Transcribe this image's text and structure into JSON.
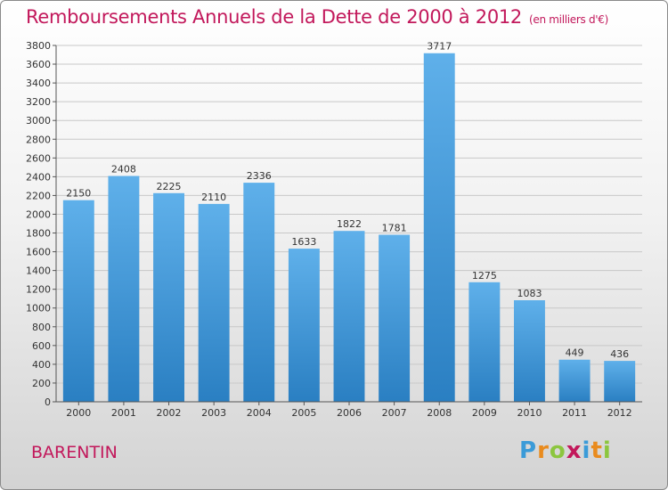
{
  "title": "Remboursements Annuels de la Dette de 2000 à 2012",
  "unit_note": "(en milliers d'€)",
  "city": "BARENTIN",
  "logo": {
    "letters": [
      "P",
      "r",
      "o",
      "x",
      "i",
      "t",
      "i"
    ],
    "colors": [
      "#3b9bd8",
      "#e98b1e",
      "#8cc63f",
      "#c2185b",
      "#3b9bd8",
      "#e98b1e",
      "#8cc63f"
    ]
  },
  "colors": {
    "title": "#c2185b",
    "bar_light": "#5fb0ea",
    "bar_dark": "#2a7fc2",
    "grid": "#c8c8c8"
  },
  "chart_data": {
    "type": "bar",
    "categories": [
      "2000",
      "2001",
      "2002",
      "2003",
      "2004",
      "2005",
      "2006",
      "2007",
      "2008",
      "2009",
      "2010",
      "2011",
      "2012"
    ],
    "values": [
      2150,
      2408,
      2225,
      2110,
      2336,
      1633,
      1822,
      1781,
      3717,
      1275,
      1083,
      449,
      436
    ],
    "ylim": [
      0,
      3800
    ],
    "ytick_step": 200,
    "grid": true
  }
}
